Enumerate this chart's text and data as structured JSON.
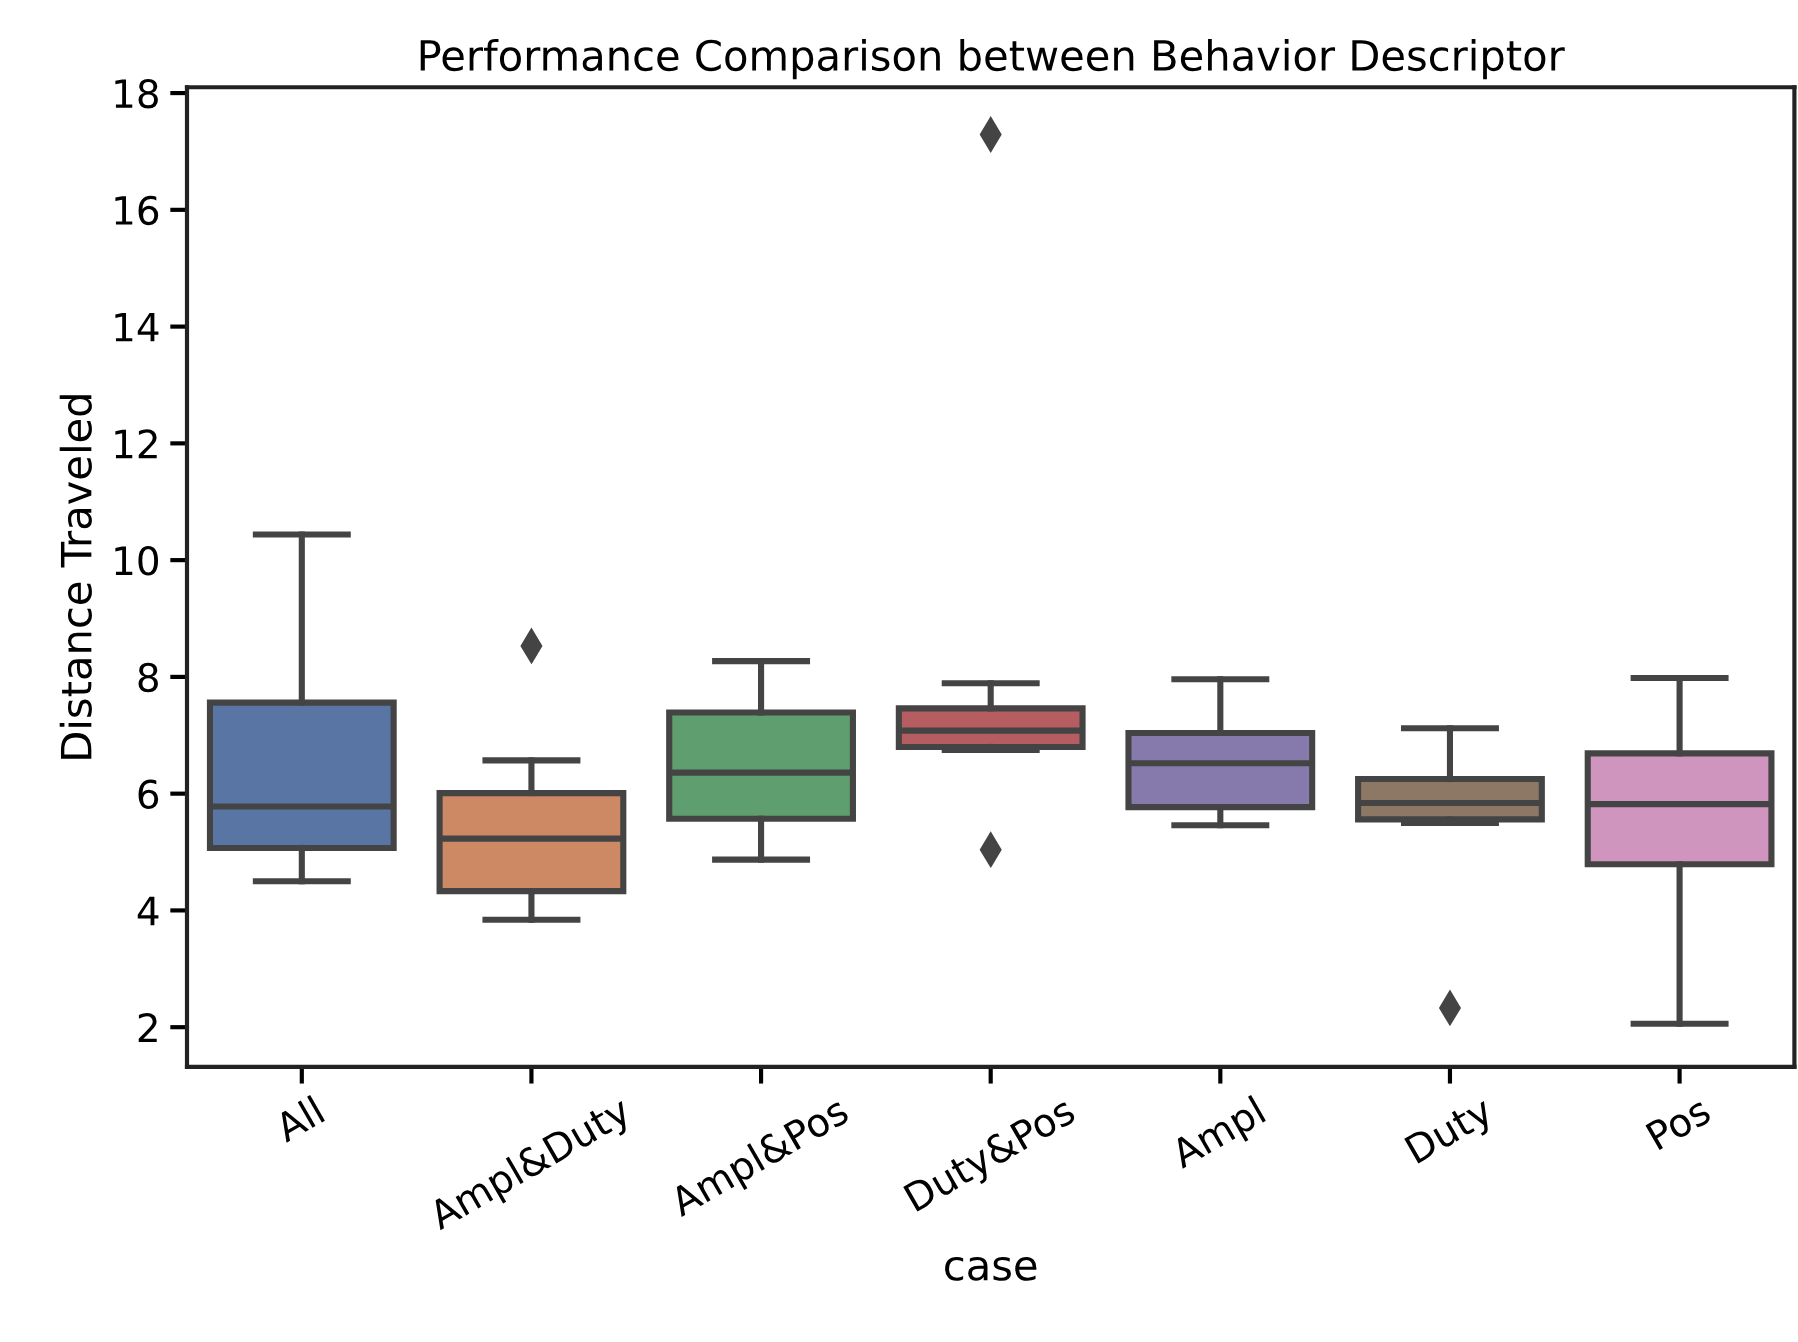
{
  "chart_data": {
    "type": "box",
    "title": "Performance Comparison between Behavior Descriptor",
    "xlabel": "case",
    "ylabel": "Distance Traveled",
    "categories": [
      "All",
      "Ampl&Duty",
      "Ampl&Pos",
      "Duty&Pos",
      "Ampl",
      "Duty",
      "Pos"
    ],
    "colors": [
      "#5975a4",
      "#cc8963",
      "#5f9e6e",
      "#b55d60",
      "#857aab",
      "#8d7866",
      "#d095bf"
    ],
    "boxes": [
      {
        "low": 4.5,
        "q1": 5.07,
        "median": 5.78,
        "q3": 7.56,
        "high": 10.44
      },
      {
        "low": 3.84,
        "q1": 4.33,
        "median": 5.23,
        "q3": 6.01,
        "high": 6.57,
        "outliers": [
          8.53
        ]
      },
      {
        "low": 4.87,
        "q1": 5.57,
        "median": 6.36,
        "q3": 7.39,
        "high": 8.27
      },
      {
        "low": 6.75,
        "q1": 6.8,
        "median": 7.08,
        "q3": 7.46,
        "high": 7.89,
        "outliers": [
          5.04,
          17.29
        ]
      },
      {
        "low": 5.46,
        "q1": 5.77,
        "median": 6.52,
        "q3": 7.04,
        "high": 7.96
      },
      {
        "low": 5.5,
        "q1": 5.56,
        "median": 5.84,
        "q3": 6.25,
        "high": 7.12,
        "outliers": [
          2.33
        ]
      },
      {
        "low": 2.06,
        "q1": 4.79,
        "median": 5.82,
        "q3": 6.69,
        "high": 7.98
      }
    ],
    "ylim": [
      1.32,
      18.1
    ],
    "yticks": [
      2,
      4,
      6,
      8,
      10,
      12,
      14,
      16,
      18
    ],
    "grid": false,
    "legend": false
  }
}
